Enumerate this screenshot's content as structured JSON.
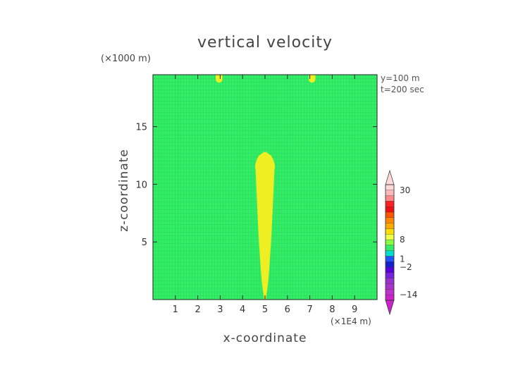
{
  "chart_data": {
    "type": "heatmap",
    "title": "vertical velocity",
    "xlabel": "x-coordinate",
    "ylabel": "z-coordinate",
    "x_unit_label": "(×1E4 m)",
    "z_unit_label": "(×1000 m)",
    "annotations": [
      "y=100 m",
      "t=200 sec"
    ],
    "xlim": [
      0,
      10
    ],
    "zlim": [
      0,
      19.5
    ],
    "x_ticks": [
      "1",
      "2",
      "3",
      "4",
      "5",
      "6",
      "7",
      "8",
      "9"
    ],
    "z_ticks": [
      "5",
      "10",
      "15"
    ],
    "grid": true,
    "colors": {
      "background_field": "#33ee66",
      "positive_region": "#eeee22",
      "grid_line": "#22cc55"
    },
    "regions": [
      {
        "label": "updraft plume",
        "x_center": 5.0,
        "z_bottom": 0.0,
        "z_top": 12.8,
        "max_half_width": 0.45
      },
      {
        "label": "top cell",
        "x_center": 2.95,
        "z_bottom": 19.0,
        "z_top": 19.5,
        "max_half_width": 0.15
      },
      {
        "label": "top cell",
        "x_center": 7.1,
        "z_bottom": 19.0,
        "z_top": 19.5,
        "max_half_width": 0.15
      }
    ],
    "colorbar": {
      "labels": [
        "30",
        "8",
        "1",
        "−2",
        "−14"
      ],
      "colors": [
        "#ffd8d8",
        "#ffb8b8",
        "#ff8888",
        "#ff2020",
        "#ee1111",
        "#ff5500",
        "#ff8800",
        "#ffaa00",
        "#ffdd00",
        "#eeff44",
        "#88ff44",
        "#33ee66",
        "#00ddcc",
        "#2255ff",
        "#1122cc",
        "#5500dd",
        "#7722dd",
        "#9933cc",
        "#aa33cc",
        "#bb33cc",
        "#cc22cc"
      ]
    }
  }
}
